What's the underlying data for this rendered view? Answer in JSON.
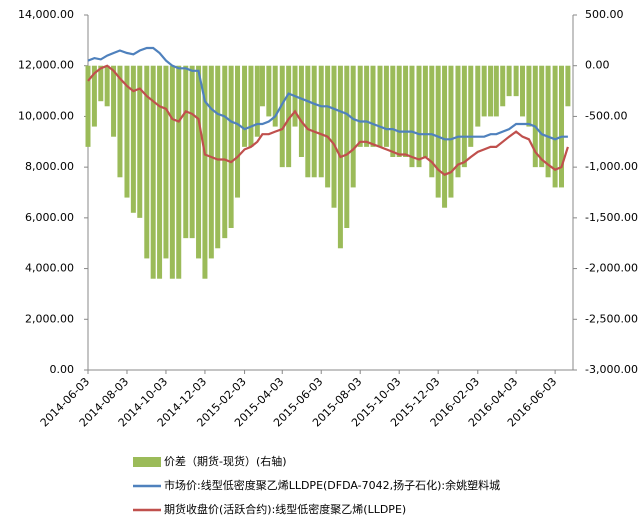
{
  "chart_data": {
    "type": "bar-line",
    "x": [
      "2014-06-03",
      "2014-06-13",
      "2014-06-23",
      "2014-07-03",
      "2014-07-13",
      "2014-07-23",
      "2014-08-03",
      "2014-08-13",
      "2014-08-23",
      "2014-09-03",
      "2014-09-13",
      "2014-09-23",
      "2014-10-03",
      "2014-10-13",
      "2014-10-23",
      "2014-11-03",
      "2014-11-13",
      "2014-11-23",
      "2014-12-03",
      "2014-12-13",
      "2014-12-23",
      "2015-01-03",
      "2015-01-13",
      "2015-01-23",
      "2015-02-03",
      "2015-02-13",
      "2015-02-23",
      "2015-03-03",
      "2015-03-13",
      "2015-03-23",
      "2015-04-03",
      "2015-04-13",
      "2015-04-23",
      "2015-05-03",
      "2015-05-13",
      "2015-05-23",
      "2015-06-03",
      "2015-06-13",
      "2015-06-23",
      "2015-07-03",
      "2015-07-13",
      "2015-07-23",
      "2015-08-03",
      "2015-08-13",
      "2015-08-23",
      "2015-09-03",
      "2015-09-13",
      "2015-09-23",
      "2015-10-03",
      "2015-10-13",
      "2015-10-23",
      "2015-11-03",
      "2015-11-13",
      "2015-11-23",
      "2015-12-03",
      "2015-12-13",
      "2015-12-23",
      "2016-01-03",
      "2016-01-13",
      "2016-01-23",
      "2016-02-03",
      "2016-02-13",
      "2016-02-23",
      "2016-03-03",
      "2016-03-13",
      "2016-03-23",
      "2016-04-03",
      "2016-04-13",
      "2016-04-23",
      "2016-05-03",
      "2016-05-13",
      "2016-05-23",
      "2016-06-03",
      "2016-06-13",
      "2016-06-23"
    ],
    "xlim": [
      "2014-06-03",
      "2016-07-01"
    ],
    "xticks": [
      "2014-06-03",
      "2014-08-03",
      "2014-10-03",
      "2014-12-03",
      "2015-02-03",
      "2015-04-03",
      "2015-06-03",
      "2015-08-03",
      "2015-10-03",
      "2015-12-03",
      "2016-02-03",
      "2016-04-03",
      "2016-06-03"
    ],
    "ylim": [
      0,
      14000
    ],
    "yticks": [
      {
        "value": 0,
        "label": "0.00"
      },
      {
        "value": 2000,
        "label": "2,000.00"
      },
      {
        "value": 4000,
        "label": "4,000.00"
      },
      {
        "value": 6000,
        "label": "6,000.00"
      },
      {
        "value": 8000,
        "label": "8,000.00"
      },
      {
        "value": 10000,
        "label": "10,000.00"
      },
      {
        "value": 12000,
        "label": "12,000.00"
      },
      {
        "value": 14000,
        "label": "14,000.00"
      }
    ],
    "y2lim": [
      -3000,
      500
    ],
    "y2ticks": [
      {
        "value": -3000,
        "label": "-3,000.00"
      },
      {
        "value": -2500,
        "label": "-2,500.00"
      },
      {
        "value": -2000,
        "label": "-2,000.00"
      },
      {
        "value": -1500,
        "label": "-1,500.00"
      },
      {
        "value": -1000,
        "label": "-1,000.00"
      },
      {
        "value": -500,
        "label": "-500.00"
      },
      {
        "value": 0,
        "label": "0.00"
      },
      {
        "value": 500,
        "label": "500.00"
      }
    ],
    "series": [
      {
        "name": "价差（期货-现货）(右轴)",
        "type": "bar",
        "axis": "y2",
        "color": "#9bbb59",
        "values": [
          -800,
          -600,
          -350,
          -400,
          -700,
          -1100,
          -1300,
          -1450,
          -1500,
          -1900,
          -2100,
          -2100,
          -1900,
          -2100,
          -2100,
          -1700,
          -1700,
          -1900,
          -2100,
          -1900,
          -1800,
          -1700,
          -1600,
          -1300,
          -800,
          -800,
          -700,
          -400,
          -500,
          -600,
          -1000,
          -1000,
          -600,
          -900,
          -1100,
          -1100,
          -1100,
          -1200,
          -1400,
          -1800,
          -1600,
          -1200,
          -800,
          -800,
          -800,
          -800,
          -800,
          -900,
          -900,
          -900,
          -1000,
          -1000,
          -900,
          -1100,
          -1300,
          -1400,
          -1300,
          -1100,
          -1000,
          -800,
          -600,
          -500,
          -500,
          -500,
          -400,
          -300,
          -300,
          -500,
          -600,
          -1000,
          -1000,
          -1100,
          -1200,
          -1200,
          -400
        ]
      },
      {
        "name": "市场价:线型低密度聚乙烯LLDPE(DFDA-7042,扬子石化):余姚塑料城",
        "type": "line",
        "color": "#4f81bd",
        "values": [
          12200,
          12300,
          12250,
          12400,
          12500,
          12600,
          12500,
          12450,
          12600,
          12700,
          12700,
          12500,
          12200,
          12000,
          11900,
          11900,
          11800,
          11800,
          10600,
          10300,
          10100,
          10000,
          9800,
          9700,
          9500,
          9600,
          9700,
          9700,
          9800,
          10000,
          10500,
          10900,
          10800,
          10700,
          10600,
          10500,
          10400,
          10400,
          10300,
          10200,
          10100,
          9900,
          9800,
          9800,
          9700,
          9600,
          9500,
          9500,
          9400,
          9400,
          9400,
          9300,
          9300,
          9300,
          9200,
          9100,
          9100,
          9200,
          9200,
          9200,
          9200,
          9200,
          9300,
          9300,
          9400,
          9500,
          9700,
          9700,
          9700,
          9600,
          9300,
          9200,
          9100,
          9200,
          9200
        ]
      },
      {
        "name": "期货收盘价(活跃合约):线型低密度聚乙烯(LLDPE)",
        "type": "line",
        "color": "#c0504d",
        "values": [
          11400,
          11700,
          11900,
          12000,
          11800,
          11500,
          11200,
          11000,
          11100,
          10800,
          10600,
          10400,
          10300,
          9900,
          9800,
          10200,
          10100,
          9900,
          8500,
          8400,
          8300,
          8300,
          8200,
          8400,
          8700,
          8800,
          9000,
          9300,
          9300,
          9400,
          9500,
          9900,
          10200,
          9800,
          9500,
          9400,
          9300,
          9200,
          8900,
          8400,
          8500,
          8700,
          9000,
          9000,
          8900,
          8800,
          8700,
          8600,
          8500,
          8500,
          8400,
          8300,
          8400,
          8200,
          7900,
          7700,
          7800,
          8100,
          8200,
          8400,
          8600,
          8700,
          8800,
          8800,
          9000,
          9200,
          9400,
          9200,
          9100,
          8600,
          8300,
          8100,
          7900,
          8000,
          8800
        ]
      }
    ]
  }
}
